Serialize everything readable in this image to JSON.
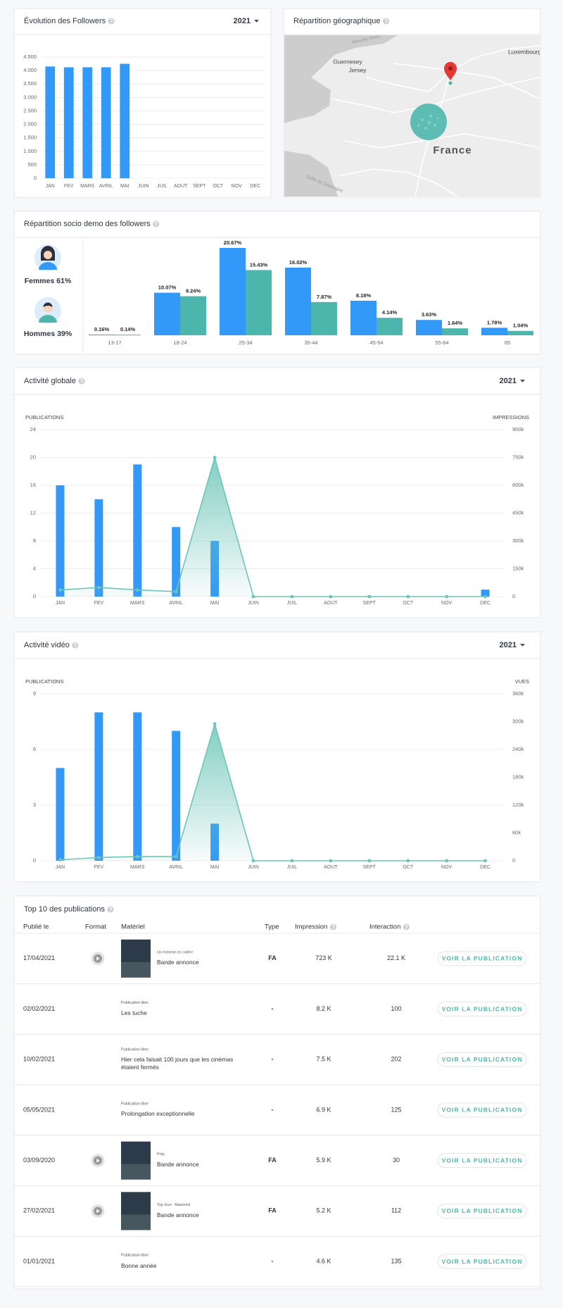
{
  "chart_data": [
    {
      "type": "bar",
      "title": "Évolution des Followers",
      "selector": "2021",
      "categories": [
        "JAN",
        "FEV",
        "MARS",
        "AVRIL",
        "MAI",
        "JUIN",
        "JUIL",
        "AOUT",
        "SEPT",
        "OCT",
        "NOV",
        "DEC"
      ],
      "values": [
        4150,
        4120,
        4120,
        4120,
        4250,
        null,
        null,
        null,
        null,
        null,
        null,
        null
      ],
      "color": "#3399f8",
      "ylim": [
        0,
        4500
      ],
      "yticks": [
        0,
        500,
        {
          "value": 1000,
          "label": "1.000"
        },
        {
          "value": 1500,
          "label": "1.500"
        },
        {
          "value": 2000,
          "label": "2.000"
        },
        {
          "value": 2500,
          "label": "2.500"
        },
        {
          "value": 3000,
          "label": "3.000"
        },
        {
          "value": 3500,
          "label": "3.500"
        },
        {
          "value": 4000,
          "label": "4.000"
        },
        {
          "value": 4500,
          "label": "4.500"
        }
      ],
      "grid": true
    },
    {
      "type": "grouped_bar",
      "title": "Répartition socio demo des followers",
      "genders": [
        {
          "label": "Femmes",
          "share": "61%"
        },
        {
          "label": "Hommes",
          "share": "39%"
        }
      ],
      "categories": [
        "13-17",
        "18-24",
        "25-34",
        "35-44",
        "45-54",
        "55-64",
        "65"
      ],
      "series": [
        {
          "color": "#3399f8",
          "values": [
            0.16,
            10.07,
            20.67,
            16.02,
            8.18,
            3.63,
            1.78
          ],
          "value_labels": [
            "0.16%",
            "10.07%",
            "20.67%",
            "16.02%",
            "8.18%",
            "3.63%",
            "1.78%"
          ]
        },
        {
          "color": "#4db6ac",
          "values": [
            0.14,
            9.24,
            15.43,
            7.87,
            4.14,
            1.64,
            1.04
          ],
          "value_labels": [
            "0.14%",
            "9.24%",
            "15.43%",
            "7.87%",
            "4.14%",
            "1.64%",
            "1.04%"
          ]
        }
      ]
    },
    {
      "type": "combo",
      "title": "Activité globale",
      "selector": "2021",
      "categories": [
        "JAN",
        "FEV",
        "MARS",
        "AVRIL",
        "MAI",
        "JUIN",
        "JUIL",
        "AOUT",
        "SEPT",
        "OCT",
        "NOV",
        "DEC"
      ],
      "ylabel": "PUBLICATIONS",
      "y2label": "IMPRESSIONS",
      "series": [
        {
          "type": "bar",
          "color": "#3399f8",
          "values": [
            16,
            14,
            19,
            10,
            8,
            0,
            0,
            0,
            0,
            0,
            0,
            1
          ]
        },
        {
          "type": "area",
          "axis": "y2",
          "color": "#6cc5b8",
          "values": [
            36000,
            49000,
            36000,
            27000,
            750000,
            0,
            0,
            0,
            0,
            0,
            0,
            0
          ]
        }
      ],
      "ylim": [
        0,
        24
      ],
      "yticks": [
        0,
        4,
        8,
        12,
        16,
        20,
        24
      ],
      "y2lim": [
        0,
        900000
      ],
      "y2ticks": [
        0,
        {
          "value": 150000,
          "label": "150k"
        },
        {
          "value": 300000,
          "label": "300k"
        },
        {
          "value": 450000,
          "label": "450k"
        },
        {
          "value": 600000,
          "label": "600k"
        },
        {
          "value": 750000,
          "label": "750k"
        },
        {
          "value": 900000,
          "label": "900k"
        }
      ],
      "grid": true
    },
    {
      "type": "combo",
      "title": "Activité vidéo",
      "selector": "2021",
      "categories": [
        "JAN",
        "FEV",
        "MARS",
        "AVRIL",
        "MAI",
        "JUIN",
        "JUIL",
        "AOUT",
        "SEPT",
        "OCT",
        "NOV",
        "DEC"
      ],
      "ylabel": "PUBLICATIONS",
      "y2label": "VUES",
      "series": [
        {
          "type": "bar",
          "color": "#3399f8",
          "values": [
            5,
            8,
            8,
            7,
            2,
            0,
            0,
            0,
            0,
            0,
            0,
            0
          ]
        },
        {
          "type": "area",
          "axis": "y2",
          "color": "#6cc5b8",
          "values": [
            2000,
            7000,
            9000,
            9000,
            295000,
            0,
            0,
            0,
            0,
            0,
            0,
            0
          ]
        }
      ],
      "ylim": [
        0,
        9
      ],
      "yticks": [
        0,
        3,
        6,
        9
      ],
      "y2lim": [
        0,
        360000
      ],
      "y2ticks": [
        0,
        {
          "value": 60000,
          "label": "60k"
        },
        {
          "value": 120000,
          "label": "120k"
        },
        {
          "value": 180000,
          "label": "180k"
        },
        {
          "value": 240000,
          "label": "240k"
        },
        {
          "value": 300000,
          "label": "300k"
        },
        {
          "value": 360000,
          "label": "360k"
        }
      ],
      "grid": true
    }
  ],
  "map": {
    "title": "Répartition géographique",
    "labels": [
      "Guernesey",
      "Jersey",
      "France",
      "Luxembourg",
      "Manche (mer)",
      "Golfe de Gascogne"
    ]
  },
  "table": {
    "title": "Top 10 des publications",
    "columns": [
      "Publié le",
      "Format",
      "Matériel",
      "Type",
      "Impression",
      "Interaction"
    ],
    "action": "VOIR LA PUBLICATION",
    "rows": [
      {
        "date": "17/04/2021",
        "video": true,
        "subtitle": "Un homme en colère",
        "title": "Bande annonce",
        "type": "FA",
        "impression": "723 K",
        "interaction": "22.1 K"
      },
      {
        "date": "02/02/2021",
        "video": false,
        "subtitle": "Publication libre",
        "title": "Les tuche",
        "type": "-",
        "impression": "8.2 K",
        "interaction": "100"
      },
      {
        "date": "10/02/2021",
        "video": false,
        "subtitle": "Publication libre",
        "title": "Hier cela faisait 100 jours que les cinémas étaient fermés",
        "type": "-",
        "impression": "7.5 K",
        "interaction": "202"
      },
      {
        "date": "05/05/2021",
        "video": false,
        "subtitle": "Publication libre",
        "title": "Prolongation exceptionnelle",
        "type": "-",
        "impression": "6.9 K",
        "interaction": "125"
      },
      {
        "date": "03/09/2020",
        "video": true,
        "subtitle": "Poly",
        "title": "Bande annonce",
        "type": "FA",
        "impression": "5.9 K",
        "interaction": "30"
      },
      {
        "date": "27/02/2021",
        "video": true,
        "subtitle": "Top Gun : Maverick",
        "title": "Bande annonce",
        "type": "FA",
        "impression": "5.2 K",
        "interaction": "112"
      },
      {
        "date": "01/01/2021",
        "video": false,
        "subtitle": "Publication libre",
        "title": "Bonne année",
        "type": "-",
        "impression": "4.6 K",
        "interaction": "135"
      }
    ]
  }
}
